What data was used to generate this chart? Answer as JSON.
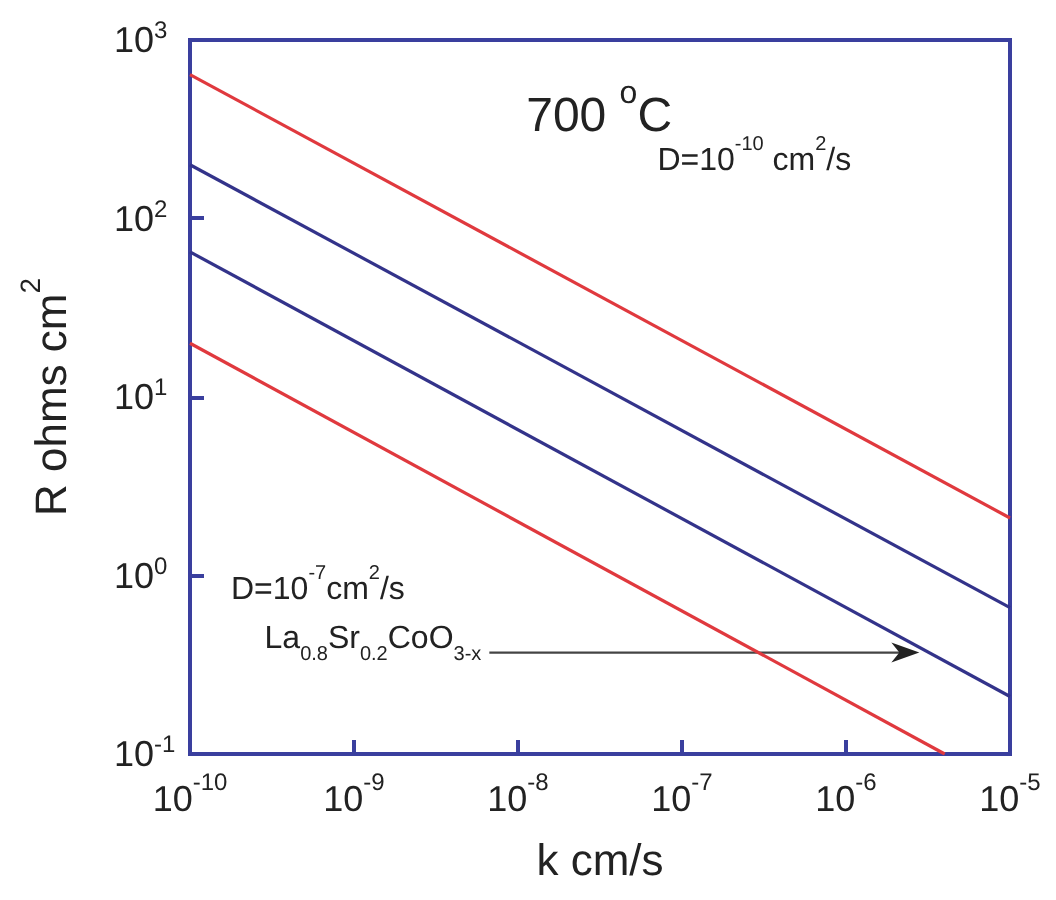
{
  "chart_data": {
    "type": "line",
    "xlabel": "k cm/s",
    "ylabel": "R ohms cm$^{2}$",
    "log": "xy",
    "grid": false,
    "marker": "none",
    "line_style": "solid",
    "xlim": [
      1e-10,
      1e-05
    ],
    "ylim": [
      0.1,
      1000
    ],
    "xticks": [
      {
        "value": 1e-10,
        "label": "10$^{-10}$"
      },
      {
        "value": 1e-09,
        "label": "10$^{-9}$"
      },
      {
        "value": 1e-08,
        "label": "10$^{-8}$"
      },
      {
        "value": 1e-07,
        "label": "10$^{-7}$"
      },
      {
        "value": 1e-06,
        "label": "10$^{-6}$"
      },
      {
        "value": 1e-05,
        "label": "10$^{-5}$"
      }
    ],
    "yticks": [
      {
        "value": 0.1,
        "label": "10$^{-1}$"
      },
      {
        "value": 1,
        "label": "10$^{0}$"
      },
      {
        "value": 10,
        "label": "10$^{1}$"
      },
      {
        "value": 100,
        "label": "10$^{2}$"
      },
      {
        "value": 1000,
        "label": "10$^{3}$"
      }
    ],
    "series": [
      {
        "color": "#e0393e",
        "x": [
          1e-10,
          1e-05
        ],
        "values": [
          640,
          2.1
        ]
      },
      {
        "color": "#33338a",
        "x": [
          1e-10,
          1e-05
        ],
        "values": [
          200,
          0.66
        ]
      },
      {
        "color": "#33338a",
        "x": [
          1e-10,
          1e-05
        ],
        "values": [
          65,
          0.21
        ]
      },
      {
        "color": "#e0393e",
        "x": [
          1e-10,
          4e-06
        ],
        "values": [
          20,
          0.1
        ]
      }
    ],
    "annotations": [
      "700 $^{o}$C",
      "D=10$^{-10}$ cm$^{2}$/s",
      "D=10$^{-7}$cm$^{2}$/s",
      {
        "text": "La$_{0.8}$Sr$_{0.2}$CoO$_{3-x}$",
        "x": 2.8e-06,
        "y": 0.37
      }
    ]
  }
}
